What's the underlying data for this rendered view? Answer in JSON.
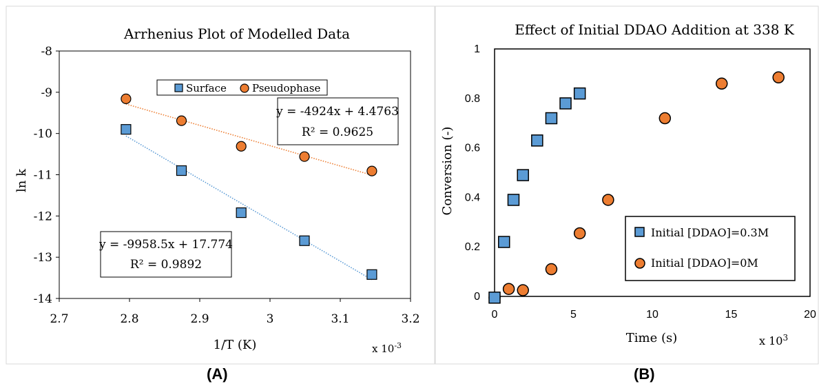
{
  "colors": {
    "blue": "#5b9bd5",
    "orange": "#ed7d31",
    "frame": "#000000",
    "panel_border": "#d9d9d9"
  },
  "panel_labels": [
    "(A)",
    "(B)"
  ],
  "chart_data": [
    {
      "type": "scatter",
      "title": "Arrhenius Plot of Modelled Data",
      "xlabel": "1/T (K)",
      "x_multiplier": "x 10",
      "x_multiplier_exp": "-3",
      "ylabel": "ln k",
      "xlim": [
        2.7,
        3.2
      ],
      "ylim": [
        -14,
        -8
      ],
      "xticks": [
        "2.7",
        "2.8",
        "2.9",
        "3",
        "3.1",
        "3.2"
      ],
      "yticks": [
        "-8",
        "-9",
        "-10",
        "-11",
        "-12",
        "-13",
        "-14"
      ],
      "grid": false,
      "legend_position": "top",
      "series": [
        {
          "name": "Surface",
          "marker": "square",
          "color": "#5b9bd5",
          "x": [
            2.795,
            2.874,
            2.959,
            3.049,
            3.145
          ],
          "y": [
            -9.9,
            -10.9,
            -11.92,
            -12.6,
            -13.42
          ],
          "trendline": {
            "slope": -9958.5,
            "intercept": 17.774,
            "equation": "y = -9958.5x + 17.774",
            "r2": "R² = 0.9892"
          }
        },
        {
          "name": "Pseudophase",
          "marker": "circle",
          "color": "#ed7d31",
          "x": [
            2.795,
            2.874,
            2.959,
            3.049,
            3.145
          ],
          "y": [
            -9.16,
            -9.69,
            -10.31,
            -10.56,
            -10.91
          ],
          "trendline": {
            "slope": -4924,
            "intercept": 4.4763,
            "equation": "y = -4924x + 4.4763",
            "r2": "R² = 0.9625"
          }
        }
      ]
    },
    {
      "type": "scatter",
      "title": "Effect of Initial DDAO Addition at 338 K",
      "xlabel": "Time (s)",
      "x_multiplier": "x 10",
      "x_multiplier_exp": "3",
      "ylabel": "Conversion (-)",
      "xlim": [
        0,
        20
      ],
      "ylim": [
        0,
        1
      ],
      "xticks": [
        "0",
        "5",
        "10",
        "15",
        "20"
      ],
      "yticks": [
        "1",
        "0.8",
        "0.6",
        "0.4",
        "0.2",
        "0"
      ],
      "grid": false,
      "legend_position": "bottom-right",
      "series": [
        {
          "name": "Initial [DDAO]=0.3M",
          "marker": "square",
          "color": "#5b9bd5",
          "x": [
            0,
            0.6,
            1.2,
            1.8,
            2.7,
            3.6,
            4.5,
            5.4
          ],
          "y": [
            -0.005,
            0.22,
            0.39,
            0.49,
            0.63,
            0.72,
            0.78,
            0.82
          ]
        },
        {
          "name": "Initial [DDAO]=0M",
          "marker": "circle",
          "color": "#ed7d31",
          "x": [
            0,
            0.9,
            1.8,
            3.6,
            5.4,
            7.2,
            10.8,
            14.4,
            18.0
          ],
          "y": [
            -0.005,
            0.03,
            0.025,
            0.11,
            0.255,
            0.39,
            0.72,
            0.86,
            0.885
          ]
        }
      ]
    }
  ]
}
